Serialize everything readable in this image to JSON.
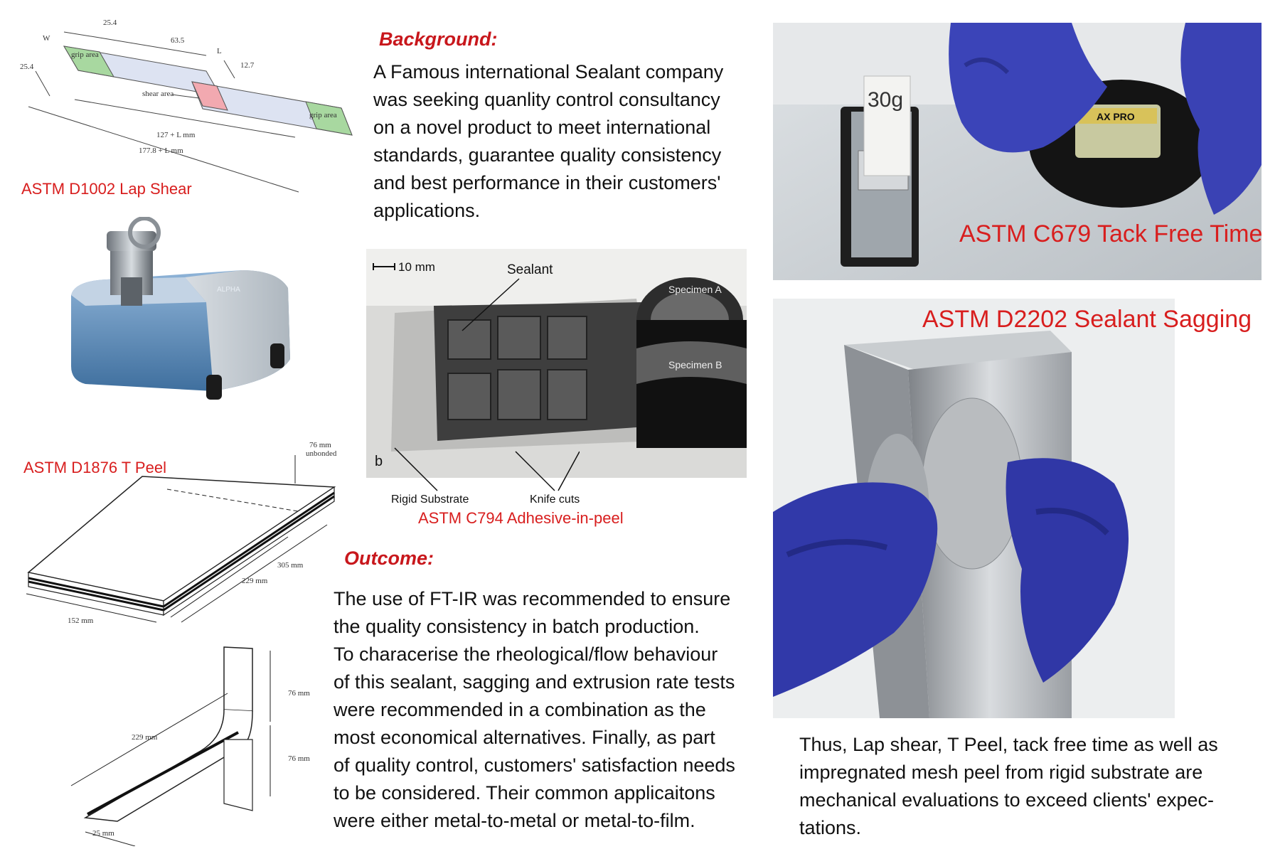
{
  "background": {
    "heading": "Background:",
    "text": "A Famous international Sealant company\nwas seeking quanlity control consultancy\non a novel product to meet international\nstandards, guarantee quality consistency\nand best performance in their customers'\napplications."
  },
  "outcome": {
    "heading": "Outcome:",
    "text": "The use of FT-IR was recommended to ensure\nthe quality consistency in batch production.\nTo characerise the rheological/flow behaviour\nof this sealant, sagging and extrusion rate tests\nwere recommended in a combination as the\nmost economical alternatives. Finally, as part\nof quality control, customers' satisfaction needs\nto be considered. Their common applicaitons\nwere either metal-to-metal or metal-to-film."
  },
  "conclusion": {
    "text": "Thus, Lap shear, T Peel, tack free time as well as\nimpregnated mesh peel from rigid substrate are\nmechanical evaluations to exceed clients' expec-\ntations."
  },
  "figures": {
    "lap_shear": {
      "caption": "ASTM D1002 Lap Shear",
      "labels": {
        "w": "W",
        "l": "L",
        "d25a": "25.4",
        "d25b": "25.4",
        "d63": "63.5",
        "d12": "12.7",
        "grip_left": "grip area",
        "grip_right": "grip area",
        "shear": "shear area",
        "len1": "127 + L mm",
        "len2": "177.8 + L mm"
      }
    },
    "ftir": {
      "brand": "ALPHA"
    },
    "t_peel": {
      "caption": "ASTM D1876 T Peel",
      "labels": {
        "unbonded1": "76 mm",
        "unbonded2": "unbonded",
        "d305": "305 mm",
        "d229": "229 mm",
        "d152": "152 mm",
        "d76a": "76 mm",
        "d76b": "76 mm",
        "d229b": "229 mm",
        "d25": "25 mm"
      }
    },
    "adhesive_peel": {
      "caption": "ASTM C794 Adhesive-in-peel",
      "scale": "10 mm",
      "sealant": "Sealant",
      "specimen_a": "Specimen A",
      "specimen_b": "Specimen B",
      "panel": "b",
      "rigid": "Rigid Substrate",
      "knife": "Knife cuts"
    },
    "tack_free": {
      "caption": "ASTM C679 Tack Free Time",
      "weight": "30g",
      "brand": "AX PRO"
    },
    "sagging": {
      "caption": "ASTM D2202 Sealant Sagging"
    }
  }
}
